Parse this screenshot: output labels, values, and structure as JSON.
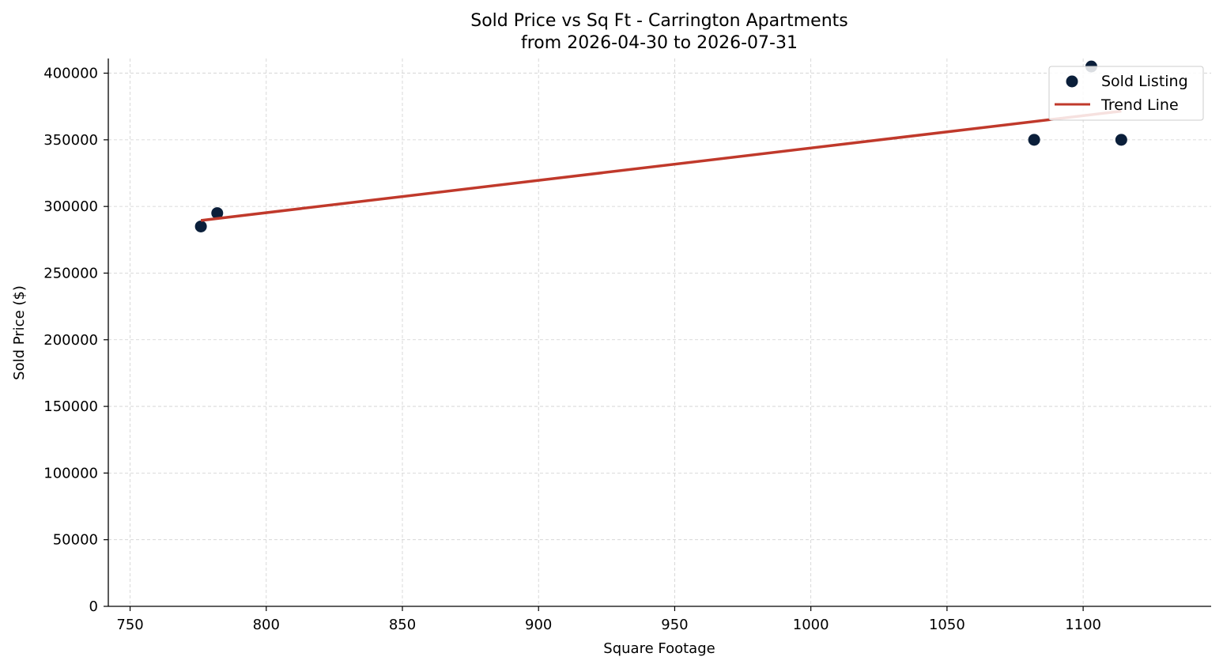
{
  "chart_data": {
    "type": "scatter",
    "title": "Sold Price vs Sq Ft - Carrington Apartments",
    "subtitle": "from 2026-04-30 to 2026-07-31",
    "xlabel": "Square Footage",
    "ylabel": "Sold Price ($)",
    "xlim": [
      742,
      1147
    ],
    "ylim": [
      0,
      411000
    ],
    "xticks": [
      750,
      800,
      850,
      900,
      950,
      1000,
      1050,
      1100
    ],
    "xtick_labels": [
      "750",
      "800",
      "850",
      "900",
      "950",
      "1000",
      "1050",
      "1100"
    ],
    "yticks": [
      0,
      50000,
      100000,
      150000,
      200000,
      250000,
      300000,
      350000,
      400000
    ],
    "ytick_labels": [
      "0",
      "50000",
      "100000",
      "150000",
      "200000",
      "250000",
      "300000",
      "350000",
      "400000"
    ],
    "grid": true,
    "legend_position": "top-right",
    "series": [
      {
        "name": "Sold Listing",
        "kind": "scatter",
        "color": "#0b1f3a",
        "points": [
          {
            "x": 776,
            "y": 285000
          },
          {
            "x": 782,
            "y": 295000
          },
          {
            "x": 1082,
            "y": 350000
          },
          {
            "x": 1103,
            "y": 405000
          },
          {
            "x": 1114,
            "y": 350000
          }
        ]
      },
      {
        "name": "Trend Line",
        "kind": "line",
        "color": "#c0392b",
        "points": [
          {
            "x": 776,
            "y": 289500
          },
          {
            "x": 1114,
            "y": 371500
          }
        ]
      }
    ]
  }
}
